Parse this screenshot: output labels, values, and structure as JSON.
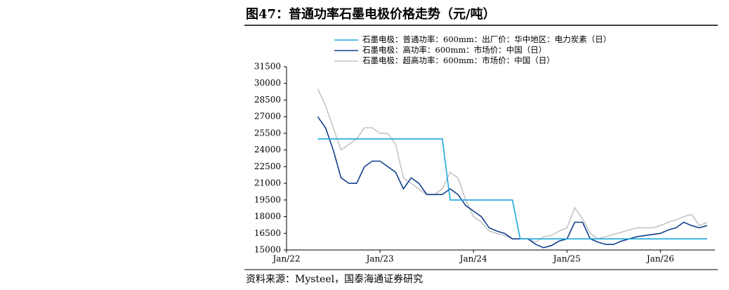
{
  "chart_data": {
    "type": "line",
    "title": "图47：普通功率石墨电极价格走势（元/吨）",
    "source": "资料来源：Mysteel，国泰海通证券研究",
    "x": [
      "2022-05",
      "2022-06",
      "2022-07",
      "2022-08",
      "2022-09",
      "2022-10",
      "2022-11",
      "2022-12",
      "2023-01",
      "2023-02",
      "2023-03",
      "2023-04",
      "2023-05",
      "2023-06",
      "2023-07",
      "2023-08",
      "2023-09",
      "2023-10",
      "2023-11",
      "2023-12",
      "2024-01",
      "2024-02",
      "2024-03",
      "2024-04",
      "2024-05",
      "2024-06",
      "2024-07",
      "2024-08",
      "2024-09",
      "2024-10",
      "2024-11",
      "2024-12",
      "2025-01",
      "2025-02",
      "2025-03",
      "2025-04",
      "2025-05",
      "2025-06",
      "2025-07",
      "2025-08",
      "2025-09",
      "2025-10",
      "2025-11",
      "2025-12",
      "2026-01",
      "2026-02",
      "2026-03",
      "2026-04",
      "2026-05",
      "2026-06",
      "2026-07"
    ],
    "series": [
      {
        "name": "石墨电极：普通功率：600mm：出厂价：华中地区：电力炭素（日）",
        "color": "#1ea7e0",
        "values": [
          25000,
          25000,
          25000,
          25000,
          25000,
          25000,
          25000,
          25000,
          25000,
          25000,
          25000,
          25000,
          25000,
          25000,
          25000,
          25000,
          25000,
          19500,
          19500,
          19500,
          19500,
          19500,
          19500,
          19500,
          19500,
          19500,
          16000,
          16000,
          16000,
          16000,
          16000,
          16000,
          16000,
          16000,
          16000,
          16000,
          16000,
          16000,
          16000,
          16000,
          16000,
          16000,
          16000,
          16000,
          16000,
          16000,
          16000,
          16000,
          16000,
          16000,
          16000
        ]
      },
      {
        "name": "石墨电极：高功率：600mm：市场价：中国（日）",
        "color": "#123f8c",
        "values": [
          27000,
          26000,
          24000,
          21500,
          21000,
          21000,
          22500,
          23000,
          23000,
          22500,
          22000,
          20500,
          21500,
          21000,
          20000,
          20000,
          20000,
          20500,
          20000,
          19000,
          18500,
          18000,
          17000,
          16700,
          16500,
          16000,
          16000,
          16000,
          15500,
          15200,
          15400,
          15800,
          16000,
          17500,
          17500,
          16000,
          15700,
          15500,
          15500,
          15800,
          16000,
          16200,
          16300,
          16400,
          16500,
          16800,
          17000,
          17500,
          17200,
          17000,
          17200
        ]
      },
      {
        "name": "石墨电极：超高功率：600mm：市场价：中国（日）",
        "color": "#c4c4c4",
        "values": [
          29500,
          28000,
          26000,
          24000,
          24500,
          25000,
          26000,
          26000,
          25500,
          25500,
          24500,
          21500,
          21000,
          20500,
          20000,
          20000,
          20500,
          22000,
          21500,
          19500,
          18000,
          17500,
          16700,
          16500,
          16300,
          16000,
          16000,
          16000,
          15700,
          16200,
          16300,
          16700,
          17000,
          18800,
          17800,
          16500,
          16000,
          16200,
          16400,
          16600,
          16800,
          17000,
          17000,
          17000,
          17200,
          17500,
          17700,
          18000,
          18200,
          17200,
          17500
        ]
      }
    ],
    "xlim": [
      "2022-01",
      "2026-08"
    ],
    "xticks": [
      {
        "value": "2022-01",
        "label": "Jan/22"
      },
      {
        "value": "2023-01",
        "label": "Jan/23"
      },
      {
        "value": "2024-01",
        "label": "Jan/24"
      },
      {
        "value": "2025-01",
        "label": "Jan/25"
      },
      {
        "value": "2026-01",
        "label": "Jan/26"
      }
    ],
    "ylim": [
      15000,
      31500
    ],
    "yticks": [
      15000,
      16500,
      18000,
      19500,
      21000,
      22500,
      24000,
      25500,
      27000,
      28500,
      30000,
      31500
    ],
    "legend": "top"
  }
}
